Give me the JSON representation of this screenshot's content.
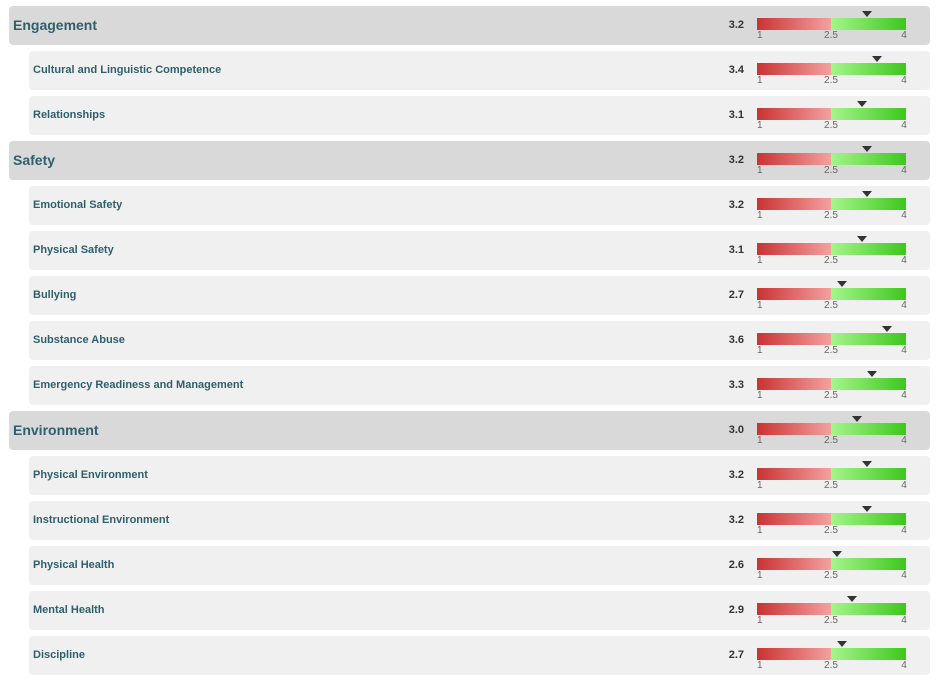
{
  "scale": {
    "min": 1,
    "mid": 2.5,
    "max": 4,
    "min_label": "1",
    "mid_label": "2.5",
    "max_label": "4"
  },
  "colors": {
    "category_bg": "#d9d9d9",
    "sub_bg": "#f0f0f0",
    "label_text": "#2f5f6b",
    "low_red": "#c93333",
    "high_green": "#3dc71d"
  },
  "rows": [
    {
      "kind": "category",
      "label": "Engagement",
      "score": "3.2",
      "value": 3.2
    },
    {
      "kind": "sub",
      "label": "Cultural and Linguistic Competence",
      "score": "3.4",
      "value": 3.4
    },
    {
      "kind": "sub",
      "label": "Relationships",
      "score": "3.1",
      "value": 3.1
    },
    {
      "kind": "category",
      "label": "Safety",
      "score": "3.2",
      "value": 3.2
    },
    {
      "kind": "sub",
      "label": "Emotional Safety",
      "score": "3.2",
      "value": 3.2
    },
    {
      "kind": "sub",
      "label": "Physical Safety",
      "score": "3.1",
      "value": 3.1
    },
    {
      "kind": "sub",
      "label": "Bullying",
      "score": "2.7",
      "value": 2.7
    },
    {
      "kind": "sub",
      "label": "Substance Abuse",
      "score": "3.6",
      "value": 3.6
    },
    {
      "kind": "sub",
      "label": "Emergency Readiness and Management",
      "score": "3.3",
      "value": 3.3
    },
    {
      "kind": "category",
      "label": "Environment",
      "score": "3.0",
      "value": 3.0
    },
    {
      "kind": "sub",
      "label": "Physical Environment",
      "score": "3.2",
      "value": 3.2
    },
    {
      "kind": "sub",
      "label": "Instructional Environment",
      "score": "3.2",
      "value": 3.2
    },
    {
      "kind": "sub",
      "label": "Physical Health",
      "score": "2.6",
      "value": 2.6
    },
    {
      "kind": "sub",
      "label": "Mental Health",
      "score": "2.9",
      "value": 2.9
    },
    {
      "kind": "sub",
      "label": "Discipline",
      "score": "2.7",
      "value": 2.7
    }
  ]
}
